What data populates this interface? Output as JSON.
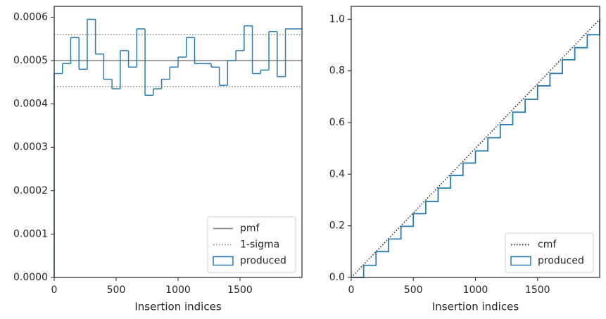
{
  "chart_data": [
    {
      "type": "histogram",
      "xlabel": "Insertion indices",
      "bins": [
        0,
        66.7,
        133.3,
        200,
        266.7,
        333.3,
        400,
        466.7,
        533.3,
        600,
        666.7,
        733.3,
        800,
        866.7,
        933.3,
        1000,
        1066.7,
        1133.3,
        1200,
        1266.7,
        1333.3,
        1400,
        1466.7,
        1533.3,
        1600,
        1666.7,
        1733.3,
        1800,
        1866.7,
        1933.3,
        2000
      ],
      "series": [
        {
          "name": "produced",
          "color": "#2b7bb0",
          "values": [
            0.00047,
            0.000493,
            0.000553,
            0.00048,
            0.000595,
            0.000515,
            0.000457,
            0.000435,
            0.000523,
            0.000485,
            0.000573,
            0.00042,
            0.000435,
            0.000457,
            0.000485,
            0.000508,
            0.000553,
            0.000493,
            0.000493,
            0.000485,
            0.000443,
            0.0005,
            0.000523,
            0.00058,
            0.00047,
            0.000478,
            0.000567,
            0.000463,
            0.000573,
            0.000573
          ]
        }
      ],
      "reference_lines": [
        {
          "name": "pmf",
          "values": [
            0.0005
          ],
          "color": "#808080",
          "style": "solid"
        },
        {
          "name": "1-sigma",
          "values": [
            0.00044,
            0.00056
          ],
          "color": "#808080",
          "style": "dotted"
        }
      ],
      "xlim": [
        0,
        2000
      ],
      "ylim": [
        0,
        0.000625
      ],
      "xticks": [
        0,
        500,
        1000,
        1500
      ],
      "yticks": [
        {
          "value": 0,
          "label": "0.0000"
        },
        0.0001,
        0.0002,
        0.0003,
        0.0004,
        0.0005,
        0.0006
      ],
      "legend": "lower right"
    },
    {
      "type": "line",
      "xlabel": "Insertion indices",
      "series": [
        {
          "name": "cmf",
          "color": "#000000",
          "style": "dotted",
          "x": [
            0,
            2000
          ],
          "values": [
            0,
            1
          ]
        },
        {
          "name": "produced",
          "color": "#2b7bb0",
          "style": "step",
          "x": [
            0,
            100,
            200,
            300,
            400,
            500,
            600,
            700,
            800,
            900,
            1000,
            1100,
            1200,
            1300,
            1400,
            1500,
            1600,
            1700,
            1800,
            1900,
            2000
          ],
          "values": [
            0,
            0.047,
            0.1,
            0.149,
            0.198,
            0.247,
            0.294,
            0.346,
            0.395,
            0.443,
            0.49,
            0.541,
            0.592,
            0.64,
            0.69,
            0.742,
            0.79,
            0.843,
            0.89,
            0.94,
            1.0
          ]
        }
      ],
      "xlim": [
        0,
        2000
      ],
      "ylim": [
        0,
        1.05
      ],
      "xticks": [
        0,
        500,
        1000,
        1500
      ],
      "yticks": [
        {
          "value": 0,
          "label": "0.0"
        },
        0.2,
        0.4,
        0.6,
        0.8,
        {
          "value": 1,
          "label": "1.0"
        }
      ],
      "legend": "lower right"
    }
  ]
}
